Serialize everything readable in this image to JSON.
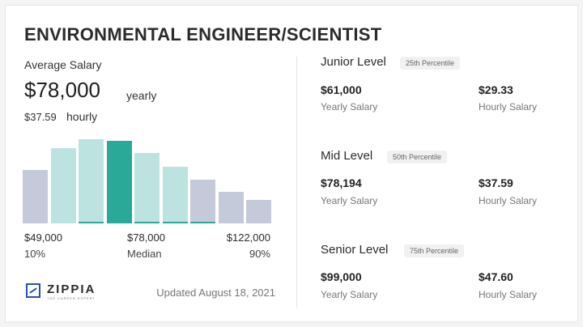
{
  "title": "ENVIRONMENTAL ENGINEER/SCIENTIST",
  "summary": {
    "average_label": "Average Salary",
    "average_value": "$78,000",
    "average_unit": "yearly",
    "hourly_value": "$37.59",
    "hourly_unit": "hourly"
  },
  "chart_data": {
    "type": "bar",
    "categories": [
      "1",
      "2",
      "3",
      "4",
      "5",
      "6",
      "7",
      "8",
      "9"
    ],
    "values": [
      62,
      88,
      98,
      96,
      82,
      66,
      51,
      37,
      27
    ],
    "colors": [
      "#c4cad9",
      "#bde3e0",
      "#bde3e0",
      "#2aa898",
      "#bde3e0",
      "#bde3e0",
      "#c4cad9",
      "#c4cad9",
      "#c4cad9"
    ],
    "median_tip_bars": [
      2,
      4,
      5,
      6
    ],
    "ylim": [
      0,
      100
    ],
    "x_labels": [
      {
        "value": "$49,000",
        "sub": "10%"
      },
      {
        "value": "$78,000",
        "sub": "Median"
      },
      {
        "value": "$122,000",
        "sub": "90%"
      }
    ]
  },
  "brand": {
    "name": "ZIPPIA",
    "tagline": "THE CAREER EXPERT"
  },
  "updated": "Updated August 18, 2021",
  "levels": [
    {
      "name": "Junior Level",
      "percentile": "25th Percentile",
      "yearly": "$61,000",
      "yearly_label": "Yearly Salary",
      "hourly": "$29.33",
      "hourly_label": "Hourly Salary"
    },
    {
      "name": "Mid Level",
      "percentile": "50th Percentile",
      "yearly": "$78,194",
      "yearly_label": "Yearly Salary",
      "hourly": "$37.59",
      "hourly_label": "Hourly Salary"
    },
    {
      "name": "Senior Level",
      "percentile": "75th Percentile",
      "yearly": "$99,000",
      "yearly_label": "Yearly Salary",
      "hourly": "$47.60",
      "hourly_label": "Hourly Salary"
    }
  ]
}
